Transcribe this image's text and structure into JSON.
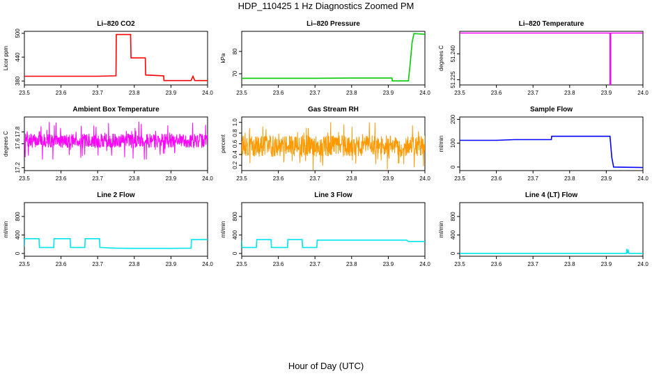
{
  "page": {
    "title": "HDP_110425  1 Hz Diagnostics Zoomed PM",
    "xlabel": "Hour of Day (UTC)"
  },
  "chart_data": [
    {
      "type": "line",
      "title": "Li–820 CO2",
      "ylabel": "Licor ppm",
      "color": "#ff0000",
      "xlim": [
        23.5,
        24.0
      ],
      "ylim": [
        370,
        505
      ],
      "xticks": [
        "23.5",
        "23.6",
        "23.7",
        "23.8",
        "23.9",
        "24.0"
      ],
      "yticks": [
        "380",
        "440",
        "500"
      ],
      "series": [
        {
          "x": [
            23.5,
            23.6,
            23.7,
            23.75,
            23.751,
            23.79,
            23.791,
            23.83,
            23.831,
            23.88,
            23.881,
            23.955,
            23.96,
            23.965,
            24.0
          ],
          "y": [
            392,
            392,
            392,
            393,
            497,
            497,
            438,
            438,
            395,
            393,
            381,
            381,
            392,
            381,
            381
          ]
        }
      ]
    },
    {
      "type": "line",
      "title": "Li–820 Pressure",
      "ylabel": "kPa",
      "color": "#00cc00",
      "xlim": [
        23.5,
        24.0
      ],
      "ylim": [
        65,
        89
      ],
      "xticks": [
        "23.5",
        "23.6",
        "23.7",
        "23.8",
        "23.9",
        "24.0"
      ],
      "yticks": [
        "70",
        "80"
      ],
      "series": [
        {
          "x": [
            23.5,
            23.6,
            23.7,
            23.8,
            23.91,
            23.911,
            23.955,
            23.96,
            23.965,
            23.97,
            24.0
          ],
          "y": [
            68.0,
            68.0,
            68.0,
            68.1,
            68.1,
            66.8,
            66.8,
            75.0,
            84.0,
            88.0,
            87.7
          ]
        }
      ]
    },
    {
      "type": "line",
      "title": "Li–820 Temperature",
      "ylabel": "degrees C",
      "color": "#ff00ff",
      "xlim": [
        23.5,
        24.0
      ],
      "ylim": [
        51.222,
        51.253
      ],
      "xticks": [
        "23.5",
        "23.6",
        "23.7",
        "23.8",
        "23.9",
        "24.0"
      ],
      "yticks": [
        "51.225",
        "51.240"
      ],
      "series": [
        {
          "x": [
            23.5,
            23.91,
            23.91,
            23.912,
            23.912,
            24.0
          ],
          "y": [
            51.252,
            51.252,
            51.222,
            51.222,
            51.252,
            51.252
          ]
        }
      ]
    },
    {
      "type": "line",
      "title": "Ambient Box Temperature",
      "ylabel": "degrees C",
      "color": "#ff00ff",
      "xlim": [
        23.5,
        24.0
      ],
      "ylim": [
        17.15,
        18.05
      ],
      "xticks": [
        "23.5",
        "23.6",
        "23.7",
        "23.8",
        "23.9",
        "24.0"
      ],
      "yticks": [
        "17.2",
        "17.6",
        "17.8"
      ],
      "noise": {
        "base": 17.65,
        "amp": 0.12,
        "spike": 0.32,
        "points": 650,
        "seed": 7
      }
    },
    {
      "type": "line",
      "title": "Gas Stream RH",
      "ylabel": "percent",
      "color": "#ff9900",
      "xlim": [
        23.5,
        24.0
      ],
      "ylim": [
        0.1,
        1.1
      ],
      "xticks": [
        "23.5",
        "23.6",
        "23.7",
        "23.8",
        "23.9",
        "24.0"
      ],
      "yticks": [
        "0.2",
        "0.4",
        "0.6",
        "0.8",
        "1.0"
      ],
      "noise": {
        "base": 0.56,
        "amp": 0.2,
        "spike": 0.45,
        "points": 650,
        "seed": 13
      }
    },
    {
      "type": "line",
      "title": "Sample Flow",
      "ylabel": "ml/min",
      "color": "#0000ff",
      "xlim": [
        23.5,
        24.0
      ],
      "ylim": [
        -15,
        210
      ],
      "xticks": [
        "23.5",
        "23.6",
        "23.7",
        "23.8",
        "23.9",
        "24.0"
      ],
      "yticks": [
        "0",
        "100",
        "200"
      ],
      "series": [
        {
          "x": [
            23.5,
            23.6,
            23.65,
            23.75,
            23.751,
            23.91,
            23.915,
            23.92,
            24.0
          ],
          "y": [
            112,
            112,
            115,
            115,
            129,
            129,
            40,
            0,
            -2
          ]
        }
      ]
    },
    {
      "type": "line",
      "title": "Line 2 Flow",
      "ylabel": "ml/min",
      "color": "#00e5ee",
      "xlim": [
        23.5,
        24.0
      ],
      "ylim": [
        -60,
        1100
      ],
      "xticks": [
        "23.5",
        "23.6",
        "23.7",
        "23.8",
        "23.9",
        "24.0"
      ],
      "yticks": [
        "0",
        "400",
        "800"
      ],
      "series": [
        {
          "x": [
            23.5,
            23.501,
            23.54,
            23.541,
            23.58,
            23.581,
            23.625,
            23.626,
            23.665,
            23.666,
            23.705,
            23.706,
            23.75,
            23.8,
            23.9,
            23.955,
            23.956,
            24.0
          ],
          "y": [
            150,
            320,
            320,
            130,
            130,
            320,
            320,
            130,
            130,
            320,
            320,
            130,
            115,
            110,
            110,
            115,
            300,
            300
          ]
        }
      ]
    },
    {
      "type": "line",
      "title": "Line 3 Flow",
      "ylabel": "ml/min",
      "color": "#00e5ee",
      "xlim": [
        23.5,
        24.0
      ],
      "ylim": [
        -60,
        1100
      ],
      "xticks": [
        "23.5",
        "23.6",
        "23.7",
        "23.8",
        "23.9",
        "24.0"
      ],
      "yticks": [
        "0",
        "400",
        "800"
      ],
      "series": [
        {
          "x": [
            23.5,
            23.501,
            23.54,
            23.541,
            23.58,
            23.581,
            23.625,
            23.626,
            23.665,
            23.666,
            23.705,
            23.706,
            23.8,
            23.9,
            23.95,
            23.955,
            24.0
          ],
          "y": [
            280,
            130,
            130,
            300,
            300,
            130,
            130,
            300,
            300,
            130,
            130,
            290,
            290,
            290,
            290,
            260,
            260
          ]
        }
      ]
    },
    {
      "type": "line",
      "title": "Line 4 (LT) Flow",
      "ylabel": "ml/min",
      "color": "#00e5ee",
      "xlim": [
        23.5,
        24.0
      ],
      "ylim": [
        -60,
        1100
      ],
      "xticks": [
        "23.5",
        "23.6",
        "23.7",
        "23.8",
        "23.9",
        "24.0"
      ],
      "yticks": [
        "0",
        "400",
        "800"
      ],
      "series": [
        {
          "x": [
            23.5,
            23.9,
            23.955,
            23.956,
            23.958,
            23.96,
            23.962,
            24.0
          ],
          "y": [
            2,
            2,
            2,
            100,
            2,
            60,
            2,
            2
          ]
        }
      ]
    }
  ]
}
